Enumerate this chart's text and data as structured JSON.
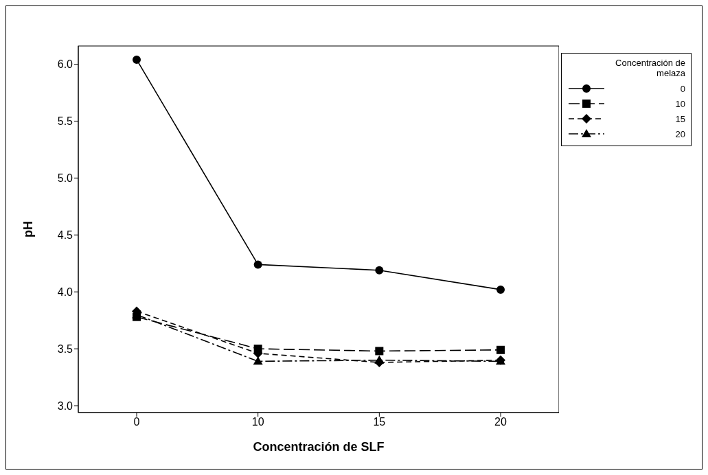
{
  "chart_data": {
    "type": "line",
    "xlabel": "Concentración de SLF",
    "ylabel": "pH",
    "legend_title": "Concentración de melaza",
    "categories": [
      "0",
      "10",
      "15",
      "20"
    ],
    "series": [
      {
        "name": "0",
        "color": "#000000",
        "marker": "circle",
        "line_style": "solid",
        "values": [
          6.04,
          4.24,
          4.19,
          4.02
        ]
      },
      {
        "name": "10",
        "color": "#000000",
        "marker": "square",
        "line_style": "longdash",
        "values": [
          3.78,
          3.5,
          3.48,
          3.49
        ]
      },
      {
        "name": "15",
        "color": "#000000",
        "marker": "diamond",
        "line_style": "dashed",
        "values": [
          3.83,
          3.46,
          3.38,
          3.4
        ]
      },
      {
        "name": "20",
        "color": "#000000",
        "marker": "triangle",
        "line_style": "dashdot",
        "values": [
          3.8,
          3.39,
          3.4,
          3.39
        ]
      }
    ],
    "ylim": [
      2.94,
      6.16
    ],
    "yticks": [
      {
        "value": 3,
        "label": "3.0"
      },
      3.5,
      {
        "value": 4,
        "label": "4.0"
      },
      4.5,
      {
        "value": 5,
        "label": "5.0"
      },
      5.5,
      {
        "value": 6,
        "label": "6.0"
      }
    ],
    "grid": false,
    "legend": "top right"
  }
}
